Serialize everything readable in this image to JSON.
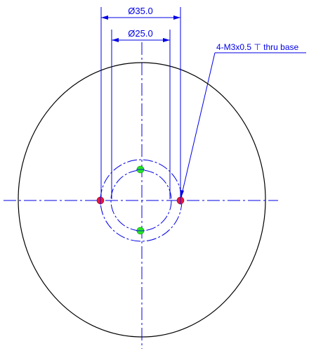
{
  "drawing": {
    "dimensions": {
      "outer_diameter_label": "Ø35.0",
      "inner_diameter_label": "Ø25.0"
    },
    "callout": {
      "text": "4-M3x0.5 ⊤ thru base"
    },
    "colors": {
      "outline": "#000000",
      "dimension": "#0000e6",
      "centerline": "#0000e6",
      "hole_red": "#e8173c",
      "hole_green": "#25e525"
    },
    "holes": [
      {
        "name": "left",
        "color": "red"
      },
      {
        "name": "right",
        "color": "red"
      },
      {
        "name": "top",
        "color": "green"
      },
      {
        "name": "bottom",
        "color": "green"
      }
    ]
  }
}
